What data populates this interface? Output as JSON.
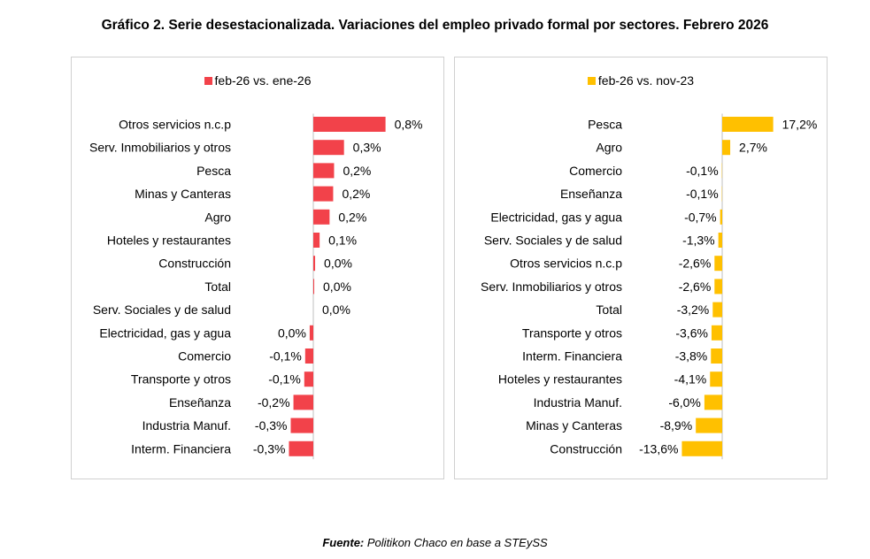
{
  "title": "Gráfico 2. Serie desestacionalizada. Variaciones del empleo privado formal por sectores. Febrero 2026",
  "source": {
    "label": "Fuente:",
    "text": "Politikon Chaco en base a STEySS"
  },
  "chart_data": [
    {
      "type": "bar",
      "orientation": "horizontal",
      "legend": "feb-26 vs. ene-26",
      "color": "#F2424A",
      "categories": [
        "Otros servicios n.c.p",
        "Serv. Inmobiliarios y otros",
        "Pesca",
        "Minas y Canteras",
        "Agro",
        "Hoteles y restaurantes",
        "Construcción",
        "Total",
        "Serv. Sociales y de salud",
        "Electricidad, gas y agua",
        "Comercio",
        "Transporte y otros",
        "Enseñanza",
        "Industria Manuf.",
        "Interm. Financiera"
      ],
      "values": [
        0.8,
        0.34,
        0.23,
        0.22,
        0.18,
        0.07,
        0.02,
        0.01,
        0.0,
        -0.04,
        -0.09,
        -0.1,
        -0.22,
        -0.25,
        -0.27
      ],
      "labels": [
        "0,8%",
        "0,3%",
        "0,2%",
        "0,2%",
        "0,2%",
        "0,1%",
        "0,0%",
        "0,0%",
        "0,0%",
        "0,0%",
        "-0,1%",
        "-0,1%",
        "-0,2%",
        "-0,3%",
        "-0,3%"
      ]
    },
    {
      "type": "bar",
      "orientation": "horizontal",
      "legend": "feb-26 vs. nov-23",
      "color": "#FFC000",
      "categories": [
        "Pesca",
        "Agro",
        "Comercio",
        "Enseñanza",
        "Electricidad, gas y agua",
        "Serv. Sociales y de salud",
        "Otros servicios n.c.p",
        "Serv. Inmobiliarios y otros",
        "Total",
        "Transporte y otros",
        "Interm. Financiera",
        "Hoteles y restaurantes",
        "Industria Manuf.",
        "Minas y Canteras",
        "Construcción"
      ],
      "values": [
        17.2,
        2.7,
        -0.1,
        -0.1,
        -0.7,
        -1.3,
        -2.6,
        -2.6,
        -3.2,
        -3.6,
        -3.8,
        -4.1,
        -6.0,
        -8.9,
        -13.6
      ],
      "labels": [
        "17,2%",
        "2,7%",
        "-0,1%",
        "-0,1%",
        "-0,7%",
        "-1,3%",
        "-2,6%",
        "-2,6%",
        "-3,2%",
        "-3,6%",
        "-3,8%",
        "-4,1%",
        "-6,0%",
        "-8,9%",
        "-13,6%"
      ]
    }
  ]
}
